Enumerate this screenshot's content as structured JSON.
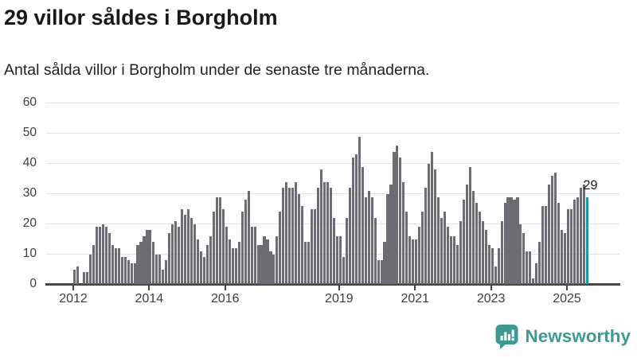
{
  "header": {
    "title": "29 villor såldes i Borgholm",
    "subtitle": "Antal sålda villor i Borgholm under de senaste tre månaderna."
  },
  "chart_data": {
    "type": "bar",
    "title": "29 villor såldes i Borgholm",
    "subtitle": "Antal sålda villor i Borgholm under de senaste tre månaderna.",
    "frequency": "monthly",
    "x_start": "2012-01",
    "x_end": "2025-07",
    "values": [
      5,
      6,
      0,
      4,
      4,
      10,
      13,
      19,
      19,
      20,
      19,
      17,
      13,
      12,
      12,
      9,
      9,
      8,
      7,
      7,
      13,
      14,
      16,
      18,
      18,
      14,
      10,
      10,
      5,
      8,
      17,
      20,
      21,
      19,
      25,
      23,
      25,
      22,
      20,
      15,
      11,
      9,
      13,
      16,
      24,
      29,
      29,
      25,
      19,
      15,
      12,
      12,
      14,
      24,
      28,
      31,
      19,
      19,
      13,
      13,
      16,
      15,
      11,
      10,
      16,
      24,
      32,
      34,
      32,
      32,
      34,
      30,
      26,
      14,
      14,
      25,
      25,
      32,
      38,
      34,
      34,
      32,
      22,
      16,
      16,
      9,
      22,
      32,
      42,
      43,
      49,
      39,
      29,
      31,
      29,
      22,
      8,
      8,
      14,
      30,
      33,
      44,
      46,
      42,
      34,
      24,
      16,
      15,
      15,
      19,
      24,
      32,
      40,
      44,
      38,
      29,
      22,
      24,
      19,
      16,
      16,
      13,
      21,
      28,
      33,
      39,
      31,
      27,
      24,
      21,
      18,
      13,
      12,
      6,
      12,
      21,
      27,
      29,
      29,
      28,
      29,
      20,
      17,
      11,
      11,
      2,
      7,
      14,
      26,
      26,
      33,
      36,
      37,
      27,
      18,
      17,
      25,
      25,
      28,
      29,
      32,
      33,
      29
    ],
    "highlight_last_bar": true,
    "last_value_label": "29",
    "yticks": [
      0,
      10,
      20,
      30,
      40,
      50,
      60
    ],
    "ylim": [
      0,
      60
    ],
    "xtick_years": [
      2012,
      2014,
      2016,
      2019,
      2021,
      2023,
      2025
    ],
    "grid": "horizontal",
    "colors": {
      "bar": "#6d6c72",
      "highlight": "#169ba1",
      "gridline": "#e2e2e2",
      "axis": "#474747",
      "axis_text": "#3c3c3c",
      "title_text": "#1a1a1a",
      "value_label_text": "#222222"
    }
  },
  "footer": {
    "brand": "Newsworthy",
    "brand_color": "#3e9a91",
    "logo_icon": "newsworthy-bubble-chart-icon"
  }
}
